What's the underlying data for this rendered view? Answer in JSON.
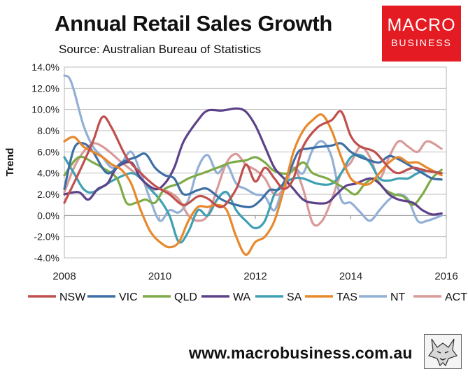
{
  "header": {
    "title": "Annual Retail Sales Growth",
    "subtitle": "Source: Australian Bureau of Statistics"
  },
  "logo": {
    "line1": "MACRO",
    "line2": "BUSINESS"
  },
  "footer": {
    "url": "www.macrobusiness.com.au"
  },
  "colors": {
    "NSW": "#c0504d",
    "VIC": "#3d6fa5",
    "QLD": "#7eab47",
    "WA": "#5e4289",
    "SA": "#3fa0b4",
    "TAS": "#e8882a",
    "NT": "#93afd5",
    "ACT": "#d99a98"
  },
  "chart_data": {
    "type": "line",
    "title": "Annual Retail Sales Growth",
    "ylabel": "Trend",
    "xlabel": "",
    "xlim": [
      2008,
      2016
    ],
    "ylim": [
      -4,
      14
    ],
    "x_ticks": [
      2008,
      2010,
      2012,
      2014,
      2016
    ],
    "y_ticks": [
      -4,
      -2,
      0,
      2,
      4,
      6,
      8,
      10,
      12,
      14
    ],
    "y_tick_labels": [
      "-4.0%",
      "-2.0%",
      "0.0%",
      "2.0%",
      "4.0%",
      "6.0%",
      "8.0%",
      "10.0%",
      "12.0%",
      "14.0%"
    ],
    "grid": true,
    "legend": "bottom",
    "series": [
      {
        "name": "NSW",
        "points": [
          [
            2008.0,
            1.2
          ],
          [
            2008.3,
            4.0
          ],
          [
            2008.6,
            7.0
          ],
          [
            2008.8,
            9.3
          ],
          [
            2009.0,
            8.2
          ],
          [
            2009.3,
            5.5
          ],
          [
            2009.6,
            4.0
          ],
          [
            2009.9,
            2.8
          ],
          [
            2010.2,
            2.0
          ],
          [
            2010.5,
            1.0
          ],
          [
            2010.8,
            1.8
          ],
          [
            2011.0,
            1.6
          ],
          [
            2011.3,
            0.8
          ],
          [
            2011.6,
            2.5
          ],
          [
            2011.8,
            4.8
          ],
          [
            2012.0,
            3.2
          ],
          [
            2012.2,
            4.5
          ],
          [
            2012.4,
            3.5
          ],
          [
            2012.6,
            2.5
          ],
          [
            2012.8,
            3.5
          ],
          [
            2013.0,
            6.5
          ],
          [
            2013.3,
            8.3
          ],
          [
            2013.6,
            9.0
          ],
          [
            2013.8,
            9.8
          ],
          [
            2014.0,
            7.5
          ],
          [
            2014.2,
            6.5
          ],
          [
            2014.5,
            6.0
          ],
          [
            2014.8,
            4.5
          ],
          [
            2015.0,
            4.0
          ],
          [
            2015.3,
            4.5
          ],
          [
            2015.6,
            4.2
          ],
          [
            2015.9,
            4.0
          ]
        ]
      },
      {
        "name": "VIC",
        "points": [
          [
            2008.0,
            2.5
          ],
          [
            2008.2,
            6.3
          ],
          [
            2008.4,
            6.8
          ],
          [
            2008.6,
            6.0
          ],
          [
            2008.9,
            4.0
          ],
          [
            2009.2,
            5.0
          ],
          [
            2009.5,
            5.5
          ],
          [
            2009.7,
            5.8
          ],
          [
            2009.9,
            4.5
          ],
          [
            2010.1,
            3.8
          ],
          [
            2010.3,
            3.5
          ],
          [
            2010.5,
            2.0
          ],
          [
            2010.8,
            2.4
          ],
          [
            2011.0,
            2.5
          ],
          [
            2011.3,
            1.5
          ],
          [
            2011.6,
            1.0
          ],
          [
            2011.9,
            0.8
          ],
          [
            2012.1,
            1.4
          ],
          [
            2012.3,
            2.4
          ],
          [
            2012.5,
            2.5
          ],
          [
            2012.7,
            4.0
          ],
          [
            2012.9,
            6.0
          ],
          [
            2013.1,
            6.3
          ],
          [
            2013.4,
            6.5
          ],
          [
            2013.6,
            6.6
          ],
          [
            2013.8,
            6.8
          ],
          [
            2014.0,
            6.0
          ],
          [
            2014.2,
            5.5
          ],
          [
            2014.4,
            5.2
          ],
          [
            2014.6,
            5.0
          ],
          [
            2014.8,
            5.6
          ],
          [
            2015.0,
            5.3
          ],
          [
            2015.2,
            4.8
          ],
          [
            2015.5,
            4.0
          ],
          [
            2015.7,
            3.5
          ],
          [
            2015.9,
            3.4
          ]
        ]
      },
      {
        "name": "QLD",
        "points": [
          [
            2008.0,
            3.8
          ],
          [
            2008.3,
            5.5
          ],
          [
            2008.6,
            5.0
          ],
          [
            2008.8,
            4.5
          ],
          [
            2009.1,
            3.5
          ],
          [
            2009.3,
            1.2
          ],
          [
            2009.5,
            1.2
          ],
          [
            2009.7,
            1.5
          ],
          [
            2009.9,
            1.2
          ],
          [
            2010.1,
            2.5
          ],
          [
            2010.4,
            3.0
          ],
          [
            2010.6,
            3.5
          ],
          [
            2010.9,
            4.0
          ],
          [
            2011.2,
            4.5
          ],
          [
            2011.5,
            5.0
          ],
          [
            2011.8,
            5.2
          ],
          [
            2012.0,
            5.5
          ],
          [
            2012.2,
            5.0
          ],
          [
            2012.4,
            4.2
          ],
          [
            2012.7,
            4.0
          ],
          [
            2013.0,
            5.0
          ],
          [
            2013.2,
            4.0
          ],
          [
            2013.5,
            3.5
          ],
          [
            2013.7,
            3.0
          ],
          [
            2013.9,
            2.5
          ],
          [
            2014.1,
            2.0
          ],
          [
            2014.3,
            3.0
          ],
          [
            2014.5,
            3.5
          ],
          [
            2014.7,
            2.5
          ],
          [
            2014.9,
            2.0
          ],
          [
            2015.1,
            1.8
          ],
          [
            2015.3,
            1.0
          ],
          [
            2015.5,
            2.0
          ],
          [
            2015.7,
            3.5
          ],
          [
            2015.9,
            4.3
          ]
        ]
      },
      {
        "name": "WA",
        "points": [
          [
            2008.0,
            2.0
          ],
          [
            2008.3,
            2.2
          ],
          [
            2008.5,
            1.5
          ],
          [
            2008.7,
            2.5
          ],
          [
            2008.9,
            3.0
          ],
          [
            2009.1,
            4.5
          ],
          [
            2009.4,
            5.0
          ],
          [
            2009.6,
            3.5
          ],
          [
            2009.9,
            2.5
          ],
          [
            2010.1,
            3.0
          ],
          [
            2010.3,
            4.5
          ],
          [
            2010.5,
            7.0
          ],
          [
            2010.8,
            9.0
          ],
          [
            2011.0,
            9.9
          ],
          [
            2011.3,
            9.9
          ],
          [
            2011.6,
            10.1
          ],
          [
            2011.8,
            9.8
          ],
          [
            2012.0,
            8.5
          ],
          [
            2012.2,
            6.5
          ],
          [
            2012.4,
            4.5
          ],
          [
            2012.6,
            3.5
          ],
          [
            2012.8,
            2.5
          ],
          [
            2013.0,
            1.5
          ],
          [
            2013.2,
            1.2
          ],
          [
            2013.5,
            1.2
          ],
          [
            2013.7,
            2.0
          ],
          [
            2013.9,
            2.8
          ],
          [
            2014.1,
            3.0
          ],
          [
            2014.4,
            3.5
          ],
          [
            2014.6,
            3.0
          ],
          [
            2014.8,
            2.0
          ],
          [
            2015.0,
            1.5
          ],
          [
            2015.3,
            1.2
          ],
          [
            2015.5,
            0.5
          ],
          [
            2015.7,
            0.1
          ],
          [
            2015.9,
            0.2
          ]
        ]
      },
      {
        "name": "SA",
        "points": [
          [
            2008.0,
            5.5
          ],
          [
            2008.2,
            4.0
          ],
          [
            2008.4,
            2.5
          ],
          [
            2008.6,
            2.2
          ],
          [
            2008.9,
            3.0
          ],
          [
            2009.1,
            3.5
          ],
          [
            2009.4,
            4.0
          ],
          [
            2009.6,
            3.5
          ],
          [
            2009.8,
            2.5
          ],
          [
            2010.0,
            1.5
          ],
          [
            2010.2,
            0.0
          ],
          [
            2010.4,
            -2.5
          ],
          [
            2010.6,
            -1.5
          ],
          [
            2010.8,
            0.5
          ],
          [
            2011.0,
            0.0
          ],
          [
            2011.2,
            1.5
          ],
          [
            2011.4,
            2.2
          ],
          [
            2011.6,
            0.5
          ],
          [
            2011.8,
            -0.5
          ],
          [
            2012.0,
            -1.2
          ],
          [
            2012.2,
            -0.5
          ],
          [
            2012.4,
            2.0
          ],
          [
            2012.6,
            3.0
          ],
          [
            2012.8,
            3.5
          ],
          [
            2013.0,
            3.5
          ],
          [
            2013.3,
            3.0
          ],
          [
            2013.6,
            3.0
          ],
          [
            2013.8,
            4.0
          ],
          [
            2014.0,
            5.5
          ],
          [
            2014.2,
            5.7
          ],
          [
            2014.4,
            5.0
          ],
          [
            2014.6,
            3.5
          ],
          [
            2014.8,
            3.3
          ],
          [
            2015.0,
            3.5
          ],
          [
            2015.2,
            3.5
          ],
          [
            2015.4,
            4.0
          ],
          [
            2015.6,
            4.2
          ],
          [
            2015.9,
            4.0
          ]
        ]
      },
      {
        "name": "TAS",
        "points": [
          [
            2008.0,
            7.0
          ],
          [
            2008.2,
            7.4
          ],
          [
            2008.4,
            6.5
          ],
          [
            2008.6,
            6.0
          ],
          [
            2008.8,
            5.5
          ],
          [
            2009.0,
            4.8
          ],
          [
            2009.2,
            4.3
          ],
          [
            2009.4,
            3.0
          ],
          [
            2009.6,
            0.5
          ],
          [
            2009.8,
            -1.5
          ],
          [
            2010.0,
            -2.5
          ],
          [
            2010.2,
            -3.0
          ],
          [
            2010.4,
            -2.5
          ],
          [
            2010.6,
            -0.5
          ],
          [
            2010.8,
            0.8
          ],
          [
            2011.0,
            0.8
          ],
          [
            2011.2,
            1.0
          ],
          [
            2011.4,
            0.5
          ],
          [
            2011.6,
            -2.0
          ],
          [
            2011.8,
            -3.7
          ],
          [
            2012.0,
            -2.5
          ],
          [
            2012.2,
            -2.0
          ],
          [
            2012.4,
            -0.5
          ],
          [
            2012.6,
            2.5
          ],
          [
            2012.8,
            6.0
          ],
          [
            2013.0,
            8.0
          ],
          [
            2013.2,
            9.0
          ],
          [
            2013.4,
            9.5
          ],
          [
            2013.6,
            8.0
          ],
          [
            2013.8,
            5.5
          ],
          [
            2014.0,
            3.5
          ],
          [
            2014.2,
            3.0
          ],
          [
            2014.4,
            3.0
          ],
          [
            2014.6,
            4.0
          ],
          [
            2014.8,
            5.0
          ],
          [
            2015.0,
            5.5
          ],
          [
            2015.2,
            5.0
          ],
          [
            2015.4,
            5.0
          ],
          [
            2015.6,
            4.5
          ],
          [
            2015.9,
            3.8
          ]
        ]
      },
      {
        "name": "NT",
        "points": [
          [
            2008.0,
            13.2
          ],
          [
            2008.1,
            13.0
          ],
          [
            2008.2,
            11.8
          ],
          [
            2008.4,
            8.5
          ],
          [
            2008.6,
            6.5
          ],
          [
            2008.8,
            5.5
          ],
          [
            2009.0,
            4.5
          ],
          [
            2009.2,
            5.0
          ],
          [
            2009.4,
            6.0
          ],
          [
            2009.6,
            4.0
          ],
          [
            2009.8,
            1.5
          ],
          [
            2010.0,
            -0.5
          ],
          [
            2010.2,
            0.5
          ],
          [
            2010.4,
            0.3
          ],
          [
            2010.6,
            1.5
          ],
          [
            2010.8,
            4.5
          ],
          [
            2011.0,
            5.7
          ],
          [
            2011.2,
            4.0
          ],
          [
            2011.4,
            4.8
          ],
          [
            2011.6,
            3.0
          ],
          [
            2011.8,
            2.5
          ],
          [
            2012.0,
            2.0
          ],
          [
            2012.2,
            1.8
          ],
          [
            2012.4,
            0.5
          ],
          [
            2012.6,
            3.0
          ],
          [
            2012.8,
            4.5
          ],
          [
            2013.0,
            4.0
          ],
          [
            2013.2,
            6.2
          ],
          [
            2013.4,
            7.0
          ],
          [
            2013.6,
            5.5
          ],
          [
            2013.8,
            1.5
          ],
          [
            2014.0,
            1.2
          ],
          [
            2014.2,
            0.3
          ],
          [
            2014.4,
            -0.5
          ],
          [
            2014.6,
            0.5
          ],
          [
            2014.8,
            1.5
          ],
          [
            2015.0,
            2.0
          ],
          [
            2015.2,
            1.5
          ],
          [
            2015.4,
            -0.5
          ],
          [
            2015.6,
            -0.5
          ],
          [
            2015.9,
            0.0
          ]
        ]
      },
      {
        "name": "ACT",
        "points": [
          [
            2008.0,
            2.2
          ],
          [
            2008.2,
            4.5
          ],
          [
            2008.4,
            6.0
          ],
          [
            2008.6,
            6.8
          ],
          [
            2008.8,
            6.5
          ],
          [
            2009.0,
            5.8
          ],
          [
            2009.2,
            5.0
          ],
          [
            2009.4,
            4.3
          ],
          [
            2009.6,
            3.5
          ],
          [
            2009.8,
            2.5
          ],
          [
            2010.0,
            2.5
          ],
          [
            2010.2,
            2.2
          ],
          [
            2010.4,
            1.5
          ],
          [
            2010.6,
            0.0
          ],
          [
            2010.8,
            -0.5
          ],
          [
            2011.0,
            0.0
          ],
          [
            2011.2,
            2.5
          ],
          [
            2011.4,
            5.0
          ],
          [
            2011.6,
            5.8
          ],
          [
            2011.8,
            4.8
          ],
          [
            2012.0,
            4.3
          ],
          [
            2012.2,
            3.5
          ],
          [
            2012.4,
            2.0
          ],
          [
            2012.6,
            2.5
          ],
          [
            2012.8,
            4.5
          ],
          [
            2013.0,
            2.5
          ],
          [
            2013.2,
            -0.7
          ],
          [
            2013.4,
            -0.5
          ],
          [
            2013.6,
            1.5
          ],
          [
            2013.8,
            4.0
          ],
          [
            2014.0,
            5.0
          ],
          [
            2014.2,
            6.5
          ],
          [
            2014.4,
            5.5
          ],
          [
            2014.6,
            3.5
          ],
          [
            2014.8,
            5.5
          ],
          [
            2015.0,
            7.0
          ],
          [
            2015.2,
            6.5
          ],
          [
            2015.4,
            6.0
          ],
          [
            2015.6,
            7.0
          ],
          [
            2015.9,
            6.3
          ]
        ]
      }
    ]
  }
}
